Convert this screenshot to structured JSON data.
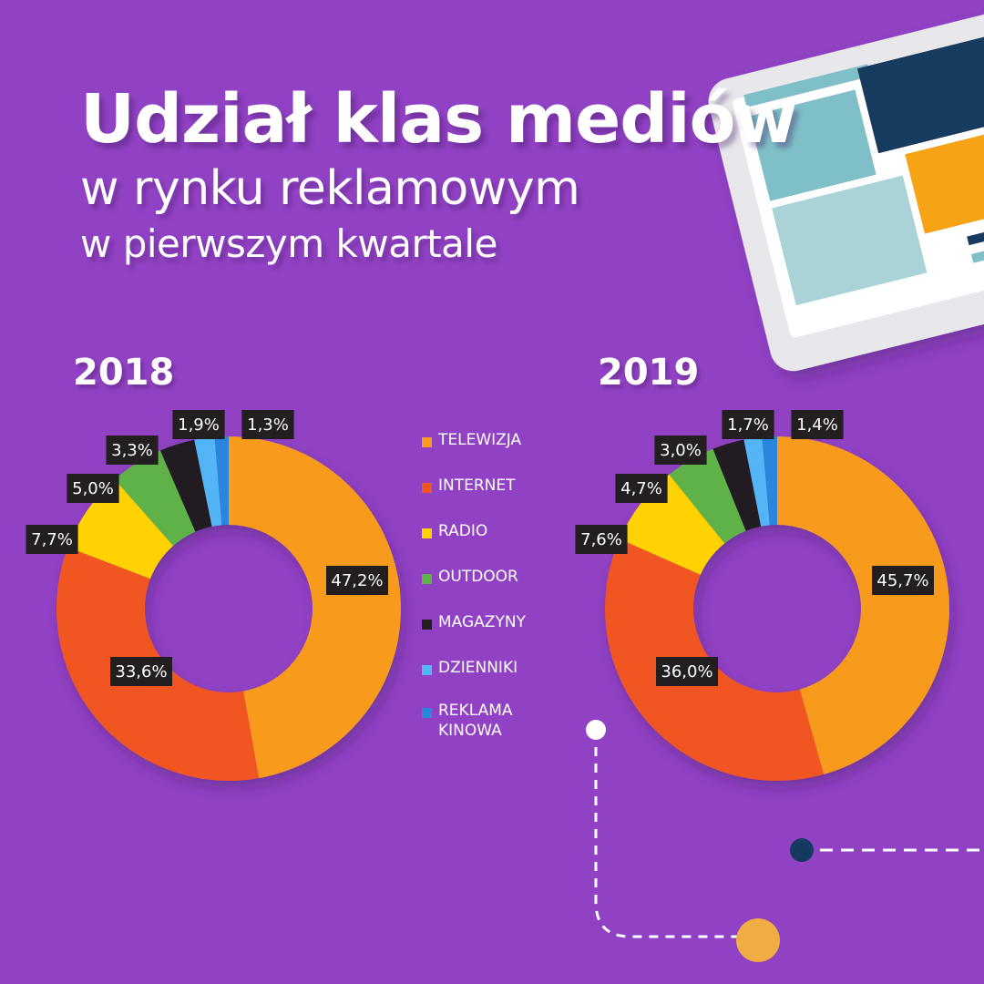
{
  "header": {
    "title": "Udział klas mediów",
    "subtitle_line1": "w rynku reklamowym",
    "subtitle_line2": "w pierwszym kwartale"
  },
  "colors": {
    "background": "#9142c4",
    "label_box": "#231f20",
    "TELEWIZJA": "#f89b1f",
    "INTERNET": "#f05523",
    "RADIO": "#ffd200",
    "OUTDOOR": "#5fb246",
    "MAGAZYNY": "#231f20",
    "DZIENNIKI": "#52b5f5",
    "REKLAMA KINOWA": "#2b86dd"
  },
  "legend": [
    {
      "label": "TELEWIZJA",
      "color": "#f89b1f"
    },
    {
      "label": "INTERNET",
      "color": "#f05523"
    },
    {
      "label": "RADIO",
      "color": "#ffd200"
    },
    {
      "label": "OUTDOOR",
      "color": "#5fb246"
    },
    {
      "label": "MAGAZYNY",
      "color": "#231f20"
    },
    {
      "label": "DZIENNIKI",
      "color": "#52b5f5"
    },
    {
      "label": "REKLAMA KINOWA",
      "color": "#2b86dd"
    }
  ],
  "chart_data": [
    {
      "type": "pie",
      "title": "2018",
      "categories": [
        "TELEWIZJA",
        "INTERNET",
        "RADIO",
        "OUTDOOR",
        "MAGAZYNY",
        "DZIENNIKI",
        "REKLAMA KINOWA"
      ],
      "values": [
        47.2,
        33.6,
        7.7,
        5.0,
        3.3,
        1.9,
        1.3
      ],
      "value_labels": [
        "47,2%",
        "33,6%",
        "7,7%",
        "5,0%",
        "3,3%",
        "1,9%",
        "1,3%"
      ],
      "donut": true
    },
    {
      "type": "pie",
      "title": "2019",
      "categories": [
        "TELEWIZJA",
        "INTERNET",
        "RADIO",
        "OUTDOOR",
        "MAGAZYNY",
        "DZIENNIKI",
        "REKLAMA KINOWA"
      ],
      "values": [
        45.7,
        36.0,
        7.6,
        4.7,
        3.0,
        1.7,
        1.4
      ],
      "value_labels": [
        "45,7%",
        "36,0%",
        "7,6%",
        "4,7%",
        "3,0%",
        "1,7%",
        "1,4%"
      ],
      "donut": true
    }
  ]
}
